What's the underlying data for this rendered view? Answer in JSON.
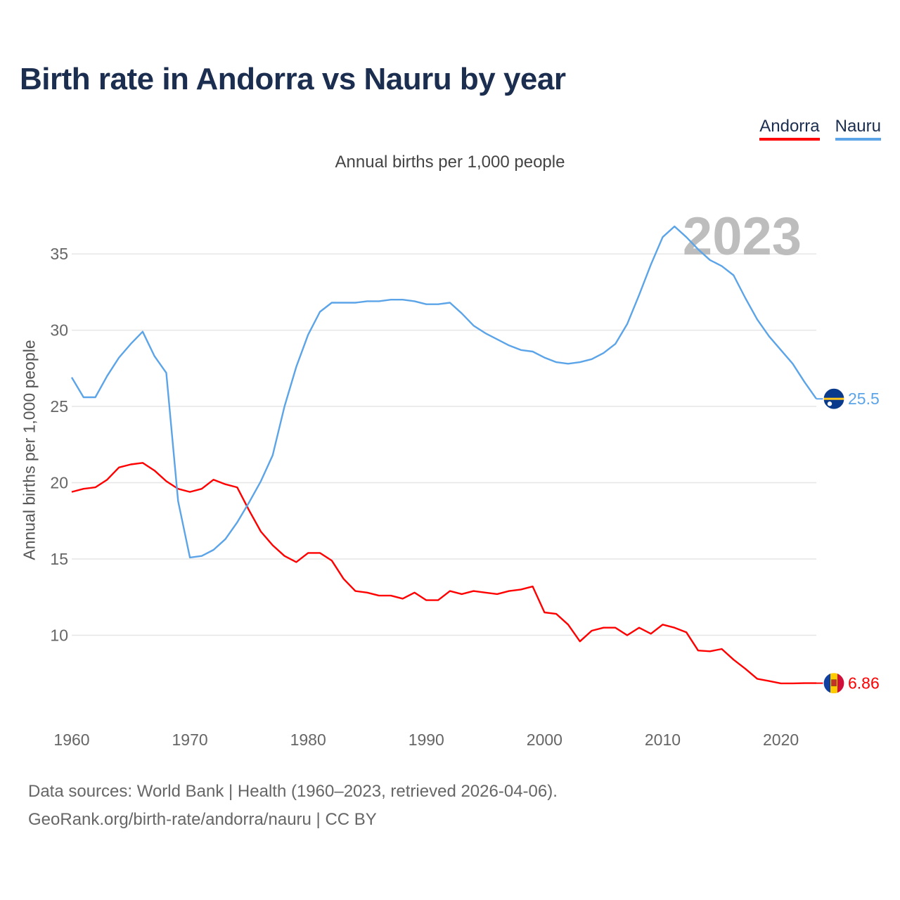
{
  "title": "Birth rate in Andorra vs Nauru by year",
  "subtitle": "Annual births per 1,000 people",
  "year_label": "2023",
  "legend": [
    {
      "name": "Andorra",
      "color": "#ff0000"
    },
    {
      "name": "Nauru",
      "color": "#5ca4e8"
    }
  ],
  "source": {
    "line1": "Data sources: World Bank | Health (1960–2023, retrieved 2026-04-06).",
    "line2": "GeoRank.org/birth-rate/andorra/nauru | CC BY"
  },
  "chart_data": {
    "type": "line",
    "title": "Birth rate in Andorra vs Nauru by year",
    "ylabel": "Annual births per 1,000 people",
    "xlabel": "",
    "xlim": [
      1960,
      2023
    ],
    "ylim": [
      5,
      38
    ],
    "grid": true,
    "xticks": [
      1960,
      1970,
      1980,
      1990,
      2000,
      2010,
      2020
    ],
    "yticks": [
      10,
      15,
      20,
      25,
      30,
      35
    ],
    "legend_position": "top-right",
    "series": [
      {
        "name": "Andorra",
        "color": "#ff0000",
        "end_label": "6.86",
        "points": [
          [
            1960,
            19.4
          ],
          [
            1961,
            19.6
          ],
          [
            1962,
            19.7
          ],
          [
            1963,
            20.2
          ],
          [
            1964,
            21.0
          ],
          [
            1965,
            21.2
          ],
          [
            1966,
            21.3
          ],
          [
            1967,
            20.8
          ],
          [
            1968,
            20.1
          ],
          [
            1969,
            19.6
          ],
          [
            1970,
            19.4
          ],
          [
            1971,
            19.6
          ],
          [
            1972,
            20.2
          ],
          [
            1973,
            19.9
          ],
          [
            1974,
            19.7
          ],
          [
            1975,
            18.2
          ],
          [
            1976,
            16.8
          ],
          [
            1977,
            15.9
          ],
          [
            1978,
            15.2
          ],
          [
            1979,
            14.8
          ],
          [
            1980,
            15.4
          ],
          [
            1981,
            15.4
          ],
          [
            1982,
            14.9
          ],
          [
            1983,
            13.7
          ],
          [
            1984,
            12.9
          ],
          [
            1985,
            12.8
          ],
          [
            1986,
            12.6
          ],
          [
            1987,
            12.6
          ],
          [
            1988,
            12.4
          ],
          [
            1989,
            12.8
          ],
          [
            1990,
            12.3
          ],
          [
            1991,
            12.3
          ],
          [
            1992,
            12.9
          ],
          [
            1993,
            12.7
          ],
          [
            1994,
            12.9
          ],
          [
            1995,
            12.8
          ],
          [
            1996,
            12.7
          ],
          [
            1997,
            12.9
          ],
          [
            1998,
            13.0
          ],
          [
            1999,
            13.2
          ],
          [
            2000,
            11.5
          ],
          [
            2001,
            11.4
          ],
          [
            2002,
            10.7
          ],
          [
            2003,
            9.6
          ],
          [
            2004,
            10.3
          ],
          [
            2005,
            10.5
          ],
          [
            2006,
            10.5
          ],
          [
            2007,
            10.0
          ],
          [
            2008,
            10.5
          ],
          [
            2009,
            10.1
          ],
          [
            2010,
            10.7
          ],
          [
            2011,
            10.5
          ],
          [
            2012,
            10.2
          ],
          [
            2013,
            9.0
          ],
          [
            2014,
            8.95
          ],
          [
            2015,
            9.1
          ],
          [
            2016,
            8.4
          ],
          [
            2017,
            7.8
          ],
          [
            2018,
            7.15
          ],
          [
            2019,
            7.0
          ],
          [
            2020,
            6.85
          ],
          [
            2021,
            6.85
          ],
          [
            2022,
            6.86
          ],
          [
            2023,
            6.86
          ]
        ]
      },
      {
        "name": "Nauru",
        "color": "#5ca4e8",
        "end_label": "25.5",
        "points": [
          [
            1960,
            26.9
          ],
          [
            1961,
            25.6
          ],
          [
            1962,
            25.6
          ],
          [
            1963,
            27.0
          ],
          [
            1964,
            28.2
          ],
          [
            1965,
            29.1
          ],
          [
            1966,
            29.9
          ],
          [
            1967,
            28.3
          ],
          [
            1968,
            27.2
          ],
          [
            1969,
            18.8
          ],
          [
            1970,
            15.1
          ],
          [
            1971,
            15.2
          ],
          [
            1972,
            15.6
          ],
          [
            1973,
            16.3
          ],
          [
            1974,
            17.4
          ],
          [
            1975,
            18.7
          ],
          [
            1976,
            20.1
          ],
          [
            1977,
            21.8
          ],
          [
            1978,
            25.0
          ],
          [
            1979,
            27.6
          ],
          [
            1980,
            29.7
          ],
          [
            1981,
            31.2
          ],
          [
            1982,
            31.8
          ],
          [
            1983,
            31.8
          ],
          [
            1984,
            31.8
          ],
          [
            1985,
            31.9
          ],
          [
            1986,
            31.9
          ],
          [
            1987,
            32.0
          ],
          [
            1988,
            32.0
          ],
          [
            1989,
            31.9
          ],
          [
            1990,
            31.7
          ],
          [
            1991,
            31.7
          ],
          [
            1992,
            31.8
          ],
          [
            1993,
            31.1
          ],
          [
            1994,
            30.3
          ],
          [
            1995,
            29.8
          ],
          [
            1996,
            29.4
          ],
          [
            1997,
            29.0
          ],
          [
            1998,
            28.7
          ],
          [
            1999,
            28.6
          ],
          [
            2000,
            28.2
          ],
          [
            2001,
            27.9
          ],
          [
            2002,
            27.8
          ],
          [
            2003,
            27.9
          ],
          [
            2004,
            28.1
          ],
          [
            2005,
            28.5
          ],
          [
            2006,
            29.1
          ],
          [
            2007,
            30.4
          ],
          [
            2008,
            32.3
          ],
          [
            2009,
            34.3
          ],
          [
            2010,
            36.1
          ],
          [
            2011,
            36.8
          ],
          [
            2012,
            36.1
          ],
          [
            2013,
            35.3
          ],
          [
            2014,
            34.6
          ],
          [
            2015,
            34.2
          ],
          [
            2016,
            33.6
          ],
          [
            2017,
            32.1
          ],
          [
            2018,
            30.7
          ],
          [
            2019,
            29.6
          ],
          [
            2020,
            28.7
          ],
          [
            2021,
            27.8
          ],
          [
            2022,
            26.6
          ],
          [
            2023,
            25.5
          ]
        ]
      }
    ]
  }
}
